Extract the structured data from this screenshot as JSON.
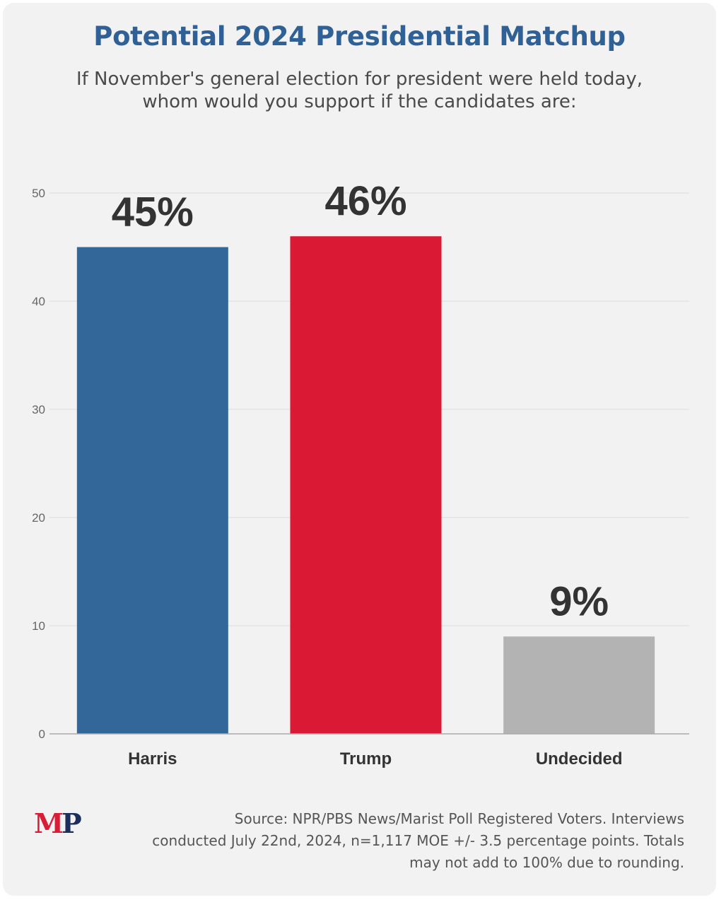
{
  "header": {
    "title": "Potential 2024 Presidential Matchup",
    "subtitle_line1": "If November's general election for president were held today,",
    "subtitle_line2": "whom would you support if the candidates are:"
  },
  "chart_data": {
    "type": "bar",
    "title": "Potential 2024 Presidential Matchup",
    "categories": [
      "Harris",
      "Trump",
      "Undecided"
    ],
    "values": [
      45,
      46,
      9
    ],
    "data_labels": [
      "45%",
      "46%",
      "9%"
    ],
    "colors": [
      "#336699",
      "#da1a35",
      "#b3b3b3"
    ],
    "ylim": [
      0,
      50
    ],
    "yticks": [
      0,
      10,
      20,
      30,
      40,
      50
    ],
    "grid": true,
    "xlabel": "",
    "ylabel": ""
  },
  "footer": {
    "logo_m": "M",
    "logo_p": "P",
    "source_line1": "Source: NPR/PBS News/Marist Poll Registered Voters. Interviews",
    "source_line2": "conducted July 22nd, 2024, n=1,117 MOE +/- 3.5 percentage points. Totals",
    "source_line3": "may not add to 100% due to rounding."
  }
}
